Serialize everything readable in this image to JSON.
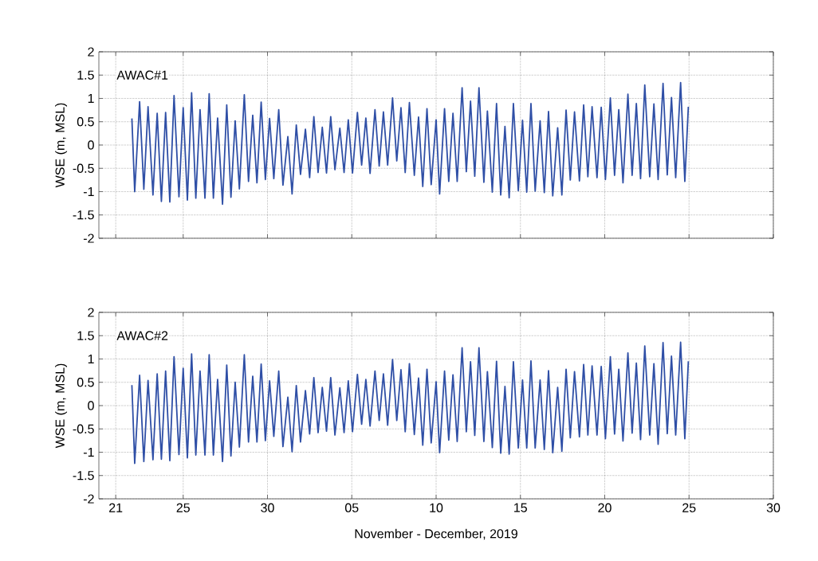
{
  "chart_data": [
    {
      "type": "line",
      "title": "AWAC#1",
      "ylabel": "WSE (m, MSL)",
      "tick_labels": "y",
      "grid": true,
      "xlim": [
        "2019-11-20",
        "2019-12-30"
      ],
      "xticks": [
        {
          "value": "2019-11-21",
          "label": null
        },
        {
          "value": "2019-11-25",
          "label": null
        },
        {
          "value": "2019-11-30",
          "label": null
        },
        {
          "value": "2019-12-05",
          "label": null
        },
        {
          "value": "2019-12-10",
          "label": null
        },
        {
          "value": "2019-12-15",
          "label": null
        },
        {
          "value": "2019-12-20",
          "label": null
        },
        {
          "value": "2019-12-25",
          "label": null
        },
        {
          "value": "2019-12-30",
          "label": null
        }
      ],
      "ylim": [
        -2,
        2
      ],
      "yticks": [
        -2,
        -1.5,
        -1,
        -0.5,
        0,
        0.5,
        1,
        1.5,
        2
      ],
      "x": [
        "2019-11-21T23:00",
        "2019-11-22T03:00",
        "2019-11-22T10:00",
        "2019-11-22T16:00",
        "2019-11-22T22:00",
        "2019-11-23T05:00",
        "2019-11-23T11:00",
        "2019-11-23T17:00",
        "2019-11-23T23:00",
        "2019-11-24T05:00",
        "2019-11-24T11:00",
        "2019-11-24T18:00",
        "2019-11-25T00:00",
        "2019-11-25T06:00",
        "2019-11-25T12:00",
        "2019-11-25T18:00",
        "2019-11-26T00:00",
        "2019-11-26T07:00",
        "2019-11-26T13:00",
        "2019-11-26T19:00",
        "2019-11-27T01:00",
        "2019-11-27T08:00",
        "2019-11-27T14:00",
        "2019-11-27T20:00",
        "2019-11-28T02:00",
        "2019-11-28T08:00",
        "2019-11-28T15:00",
        "2019-11-28T21:00",
        "2019-11-29T03:00",
        "2019-11-29T09:00",
        "2019-11-29T15:00",
        "2019-11-29T21:00",
        "2019-11-30T03:00",
        "2019-11-30T09:00",
        "2019-11-30T16:00",
        "2019-11-30T22:00",
        "2019-12-01T05:00",
        "2019-12-01T11:00",
        "2019-12-01T17:00",
        "2019-12-01T23:00",
        "2019-12-02T06:00",
        "2019-12-02T12:00",
        "2019-12-02T18:00",
        "2019-12-03T00:00",
        "2019-12-03T06:00",
        "2019-12-03T12:00",
        "2019-12-03T18:00",
        "2019-12-04T00:00",
        "2019-12-04T07:00",
        "2019-12-04T13:00",
        "2019-12-04T19:00",
        "2019-12-05T01:00",
        "2019-12-05T08:00",
        "2019-12-05T14:00",
        "2019-12-05T20:00",
        "2019-12-06T02:00",
        "2019-12-06T09:00",
        "2019-12-06T15:00",
        "2019-12-06T21:00",
        "2019-12-07T03:00",
        "2019-12-07T10:00",
        "2019-12-07T16:00",
        "2019-12-07T22:00",
        "2019-12-08T04:00",
        "2019-12-08T10:00",
        "2019-12-08T17:00",
        "2019-12-08T23:00",
        "2019-12-09T05:00",
        "2019-12-09T11:00",
        "2019-12-09T17:00",
        "2019-12-10T00:00",
        "2019-12-10T05:00",
        "2019-12-10T12:00",
        "2019-12-10T18:00",
        "2019-12-11T00:00",
        "2019-12-11T06:00",
        "2019-12-11T13:00",
        "2019-12-11T19:00",
        "2019-12-12T01:00",
        "2019-12-12T07:00",
        "2019-12-12T13:00",
        "2019-12-12T20:00",
        "2019-12-13T01:00",
        "2019-12-13T08:00",
        "2019-12-13T14:00",
        "2019-12-13T20:00",
        "2019-12-14T02:00",
        "2019-12-14T08:00",
        "2019-12-14T14:00",
        "2019-12-14T21:00",
        "2019-12-15T03:00",
        "2019-12-15T09:00",
        "2019-12-15T15:00",
        "2019-12-15T21:00",
        "2019-12-16T04:00",
        "2019-12-16T10:00",
        "2019-12-16T16:00",
        "2019-12-16T22:00",
        "2019-12-17T05:00",
        "2019-12-17T11:00",
        "2019-12-17T17:00",
        "2019-12-17T23:00",
        "2019-12-18T05:00",
        "2019-12-18T12:00",
        "2019-12-18T18:00",
        "2019-12-19T00:00",
        "2019-12-19T06:00",
        "2019-12-19T13:00",
        "2019-12-19T19:00",
        "2019-12-20T01:00",
        "2019-12-20T08:00",
        "2019-12-20T14:00",
        "2019-12-20T20:00",
        "2019-12-21T02:00",
        "2019-12-21T09:00",
        "2019-12-21T15:00",
        "2019-12-21T21:00",
        "2019-12-22T03:00",
        "2019-12-22T09:00",
        "2019-12-22T16:00",
        "2019-12-22T22:00",
        "2019-12-23T04:00",
        "2019-12-23T11:00",
        "2019-12-23T17:00",
        "2019-12-23T23:00",
        "2019-12-24T05:00",
        "2019-12-24T12:00",
        "2019-12-24T18:00",
        "2019-12-24T23:00"
      ],
      "series": [
        {
          "color": "#2f4fa6",
          "values": [
            0.57,
            -1.0,
            0.93,
            -0.95,
            0.82,
            -1.07,
            0.68,
            -1.21,
            0.7,
            -1.22,
            1.06,
            -1.11,
            0.8,
            -1.18,
            1.12,
            -1.14,
            0.76,
            -1.14,
            1.1,
            -1.14,
            0.58,
            -1.27,
            0.86,
            -1.12,
            0.52,
            -0.94,
            1.08,
            -0.78,
            0.64,
            -0.81,
            0.92,
            -0.74,
            0.57,
            -0.72,
            0.76,
            -0.86,
            0.18,
            -1.05,
            0.43,
            -0.63,
            0.34,
            -0.7,
            0.61,
            -0.59,
            0.38,
            -0.6,
            0.61,
            -0.53,
            0.36,
            -0.59,
            0.54,
            -0.6,
            0.7,
            -0.43,
            0.58,
            -0.61,
            0.76,
            -0.45,
            0.71,
            -0.43,
            1.01,
            -0.34,
            0.8,
            -0.59,
            0.91,
            -0.65,
            0.6,
            -0.89,
            0.78,
            -0.85,
            0.54,
            -1.05,
            0.78,
            -0.78,
            0.68,
            -0.78,
            1.23,
            -0.57,
            0.94,
            -0.67,
            1.23,
            -0.8,
            0.73,
            -1.01,
            0.89,
            -1.07,
            0.4,
            -1.13,
            0.89,
            -0.98,
            0.53,
            -1.01,
            0.89,
            -0.99,
            0.52,
            -1.02,
            0.72,
            -1.09,
            0.37,
            -1.07,
            0.75,
            -0.75,
            0.71,
            -0.77,
            0.86,
            -0.68,
            0.82,
            -0.7,
            0.81,
            -0.74,
            1.01,
            -0.65,
            0.76,
            -0.81,
            1.09,
            -0.65,
            0.89,
            -0.72,
            1.29,
            -0.68,
            0.88,
            -0.74,
            1.32,
            -0.64,
            1.02,
            -0.7,
            1.34,
            -0.78,
            0.82
          ]
        }
      ]
    },
    {
      "type": "line",
      "title": "AWAC#2",
      "ylabel": "WSE (m, MSL)",
      "xlabel": "November - December, 2019",
      "grid": true,
      "xlim": [
        "2019-11-20",
        "2019-12-30"
      ],
      "xticks": [
        {
          "value": "2019-11-21",
          "label": "21"
        },
        {
          "value": "2019-11-25",
          "label": "25"
        },
        {
          "value": "2019-11-30",
          "label": "30"
        },
        {
          "value": "2019-12-05",
          "label": "05"
        },
        {
          "value": "2019-12-10",
          "label": "10"
        },
        {
          "value": "2019-12-15",
          "label": "15"
        },
        {
          "value": "2019-12-20",
          "label": "20"
        },
        {
          "value": "2019-12-25",
          "label": "25"
        },
        {
          "value": "2019-12-30",
          "label": "30"
        }
      ],
      "ylim": [
        -2,
        2
      ],
      "yticks": [
        -2,
        -1.5,
        -1,
        -0.5,
        0,
        0.5,
        1,
        1.5,
        2
      ],
      "x": [
        "2019-11-21T23:00",
        "2019-11-22T03:00",
        "2019-11-22T10:00",
        "2019-11-22T16:00",
        "2019-11-22T22:00",
        "2019-11-23T05:00",
        "2019-11-23T11:00",
        "2019-11-23T17:00",
        "2019-11-23T23:00",
        "2019-11-24T05:00",
        "2019-11-24T11:00",
        "2019-11-24T18:00",
        "2019-11-25T00:00",
        "2019-11-25T06:00",
        "2019-11-25T12:00",
        "2019-11-25T18:00",
        "2019-11-26T00:00",
        "2019-11-26T07:00",
        "2019-11-26T13:00",
        "2019-11-26T19:00",
        "2019-11-27T01:00",
        "2019-11-27T08:00",
        "2019-11-27T14:00",
        "2019-11-27T20:00",
        "2019-11-28T02:00",
        "2019-11-28T08:00",
        "2019-11-28T15:00",
        "2019-11-28T21:00",
        "2019-11-29T03:00",
        "2019-11-29T09:00",
        "2019-11-29T15:00",
        "2019-11-29T21:00",
        "2019-11-30T03:00",
        "2019-11-30T09:00",
        "2019-11-30T16:00",
        "2019-11-30T22:00",
        "2019-12-01T05:00",
        "2019-12-01T11:00",
        "2019-12-01T17:00",
        "2019-12-01T23:00",
        "2019-12-02T06:00",
        "2019-12-02T12:00",
        "2019-12-02T18:00",
        "2019-12-03T00:00",
        "2019-12-03T06:00",
        "2019-12-03T12:00",
        "2019-12-03T18:00",
        "2019-12-04T00:00",
        "2019-12-04T07:00",
        "2019-12-04T13:00",
        "2019-12-04T19:00",
        "2019-12-05T01:00",
        "2019-12-05T08:00",
        "2019-12-05T14:00",
        "2019-12-05T20:00",
        "2019-12-06T02:00",
        "2019-12-06T09:00",
        "2019-12-06T15:00",
        "2019-12-06T21:00",
        "2019-12-07T03:00",
        "2019-12-07T10:00",
        "2019-12-07T16:00",
        "2019-12-07T22:00",
        "2019-12-08T04:00",
        "2019-12-08T10:00",
        "2019-12-08T17:00",
        "2019-12-08T23:00",
        "2019-12-09T05:00",
        "2019-12-09T11:00",
        "2019-12-09T17:00",
        "2019-12-10T00:00",
        "2019-12-10T05:00",
        "2019-12-10T12:00",
        "2019-12-10T18:00",
        "2019-12-11T00:00",
        "2019-12-11T06:00",
        "2019-12-11T13:00",
        "2019-12-11T19:00",
        "2019-12-12T01:00",
        "2019-12-12T07:00",
        "2019-12-12T13:00",
        "2019-12-12T20:00",
        "2019-12-13T01:00",
        "2019-12-13T08:00",
        "2019-12-13T14:00",
        "2019-12-13T20:00",
        "2019-12-14T02:00",
        "2019-12-14T08:00",
        "2019-12-14T14:00",
        "2019-12-14T21:00",
        "2019-12-15T03:00",
        "2019-12-15T09:00",
        "2019-12-15T15:00",
        "2019-12-15T21:00",
        "2019-12-16T04:00",
        "2019-12-16T10:00",
        "2019-12-16T16:00",
        "2019-12-16T22:00",
        "2019-12-17T05:00",
        "2019-12-17T11:00",
        "2019-12-17T17:00",
        "2019-12-17T23:00",
        "2019-12-18T05:00",
        "2019-12-18T12:00",
        "2019-12-18T18:00",
        "2019-12-19T00:00",
        "2019-12-19T06:00",
        "2019-12-19T13:00",
        "2019-12-19T19:00",
        "2019-12-20T01:00",
        "2019-12-20T08:00",
        "2019-12-20T14:00",
        "2019-12-20T20:00",
        "2019-12-21T02:00",
        "2019-12-21T09:00",
        "2019-12-21T15:00",
        "2019-12-21T21:00",
        "2019-12-22T03:00",
        "2019-12-22T09:00",
        "2019-12-22T16:00",
        "2019-12-22T22:00",
        "2019-12-23T04:00",
        "2019-12-23T11:00",
        "2019-12-23T17:00",
        "2019-12-23T23:00",
        "2019-12-24T05:00",
        "2019-12-24T12:00",
        "2019-12-24T18:00",
        "2019-12-24T23:00"
      ],
      "series": [
        {
          "color": "#2f4fa6",
          "values": [
            0.44,
            -1.24,
            0.65,
            -1.2,
            0.54,
            -1.16,
            0.68,
            -1.15,
            0.74,
            -1.18,
            1.05,
            -1.05,
            0.8,
            -1.12,
            1.11,
            -1.06,
            0.74,
            -1.06,
            1.09,
            -1.06,
            0.56,
            -1.2,
            0.87,
            -1.08,
            0.5,
            -0.89,
            1.09,
            -0.78,
            0.63,
            -0.78,
            0.89,
            -0.75,
            0.53,
            -0.66,
            0.74,
            -0.88,
            0.18,
            -0.99,
            0.43,
            -0.78,
            0.32,
            -0.61,
            0.6,
            -0.58,
            0.39,
            -0.55,
            0.6,
            -0.63,
            0.38,
            -0.58,
            0.53,
            -0.56,
            0.67,
            -0.4,
            0.56,
            -0.44,
            0.74,
            -0.32,
            0.68,
            -0.42,
            0.99,
            -0.32,
            0.77,
            -0.56,
            0.9,
            -0.62,
            0.59,
            -0.85,
            0.78,
            -0.8,
            0.51,
            -1.01,
            0.74,
            -0.74,
            0.66,
            -0.77,
            1.24,
            -0.56,
            0.94,
            -0.64,
            1.24,
            -0.77,
            0.73,
            -0.9,
            0.95,
            -1.02,
            0.41,
            -1.04,
            0.94,
            -0.91,
            0.55,
            -0.91,
            0.96,
            -0.91,
            0.55,
            -0.94,
            0.75,
            -1.01,
            0.39,
            -0.98,
            0.78,
            -0.69,
            0.73,
            -0.67,
            0.88,
            -0.63,
            0.85,
            -0.63,
            0.84,
            -0.71,
            1.05,
            -0.61,
            0.78,
            -0.76,
            1.13,
            -0.59,
            0.91,
            -0.73,
            1.28,
            -0.63,
            0.9,
            -0.83,
            1.35,
            -0.6,
            1.06,
            -0.63,
            1.36,
            -0.71,
            0.95
          ]
        }
      ]
    }
  ]
}
